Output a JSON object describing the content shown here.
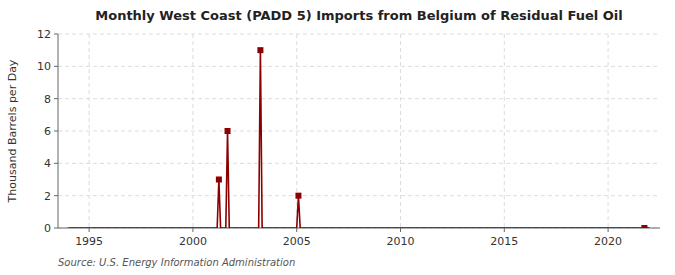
{
  "chart_data": {
    "type": "line",
    "title": "Monthly West Coast (PADD 5) Imports from Belgium of Residual Fuel Oil",
    "ylabel": "Thousand Barrels per Day",
    "source": "Source: U.S. Energy Information Administration",
    "xlim": [
      1993.5,
      2022.5
    ],
    "ylim": [
      0,
      12
    ],
    "xticks": [
      1995,
      2000,
      2005,
      2010,
      2015,
      2020
    ],
    "yticks": [
      0,
      2,
      4,
      6,
      8,
      10,
      12
    ],
    "grid": true,
    "series": [
      {
        "type": "line",
        "color": "#8b0000",
        "x": [
          1994.0,
          1994.083,
          1994.167,
          1994.25,
          1994.333,
          1994.417,
          1994.5,
          1994.583,
          1994.667,
          1994.75,
          1994.833,
          1994.917,
          1995.0,
          1995.083,
          1995.167,
          1995.25,
          1995.333,
          1995.417,
          1995.5,
          1995.583,
          1995.667,
          1995.75,
          1995.833,
          1995.917,
          1996.0,
          1996.083,
          1996.167,
          1996.25,
          1996.333,
          1996.417,
          1996.5,
          1996.583,
          1996.667,
          1996.75,
          1996.833,
          1996.917,
          1997.0,
          1997.083,
          1997.167,
          1997.25,
          1997.333,
          1997.417,
          1997.5,
          1997.583,
          1997.667,
          1997.75,
          1997.833,
          1997.917,
          1998.0,
          1998.083,
          1998.167,
          1998.25,
          1998.333,
          1998.417,
          1998.5,
          1998.583,
          1998.667,
          1998.75,
          1998.833,
          1998.917,
          1999.0,
          1999.083,
          1999.167,
          1999.25,
          1999.333,
          1999.417,
          1999.5,
          1999.583,
          1999.667,
          1999.75,
          1999.833,
          1999.917,
          2000.0,
          2000.083,
          2000.167,
          2000.25,
          2000.333,
          2000.417,
          2000.5,
          2000.583,
          2000.667,
          2000.75,
          2000.833,
          2000.917,
          2001.0,
          2001.083,
          2001.167,
          2001.25,
          2001.333,
          2001.417,
          2001.5,
          2001.583,
          2001.667,
          2001.75,
          2001.833,
          2001.917,
          2002.0,
          2002.083,
          2002.167,
          2002.25,
          2002.333,
          2002.417,
          2002.5,
          2002.583,
          2002.667,
          2002.75,
          2002.833,
          2002.917,
          2003.0,
          2003.083,
          2003.167,
          2003.25,
          2003.333,
          2003.417,
          2003.5,
          2003.583,
          2003.667,
          2003.75,
          2003.833,
          2003.917,
          2004.0,
          2004.083,
          2004.167,
          2004.25,
          2004.333,
          2004.417,
          2004.5,
          2004.583,
          2004.667,
          2004.75,
          2004.833,
          2004.917,
          2005.0,
          2005.083,
          2005.167,
          2005.25,
          2005.333,
          2005.417,
          2005.5,
          2005.583,
          2005.667,
          2005.75,
          2005.833,
          2005.917,
          2006.0,
          2006.083,
          2006.167,
          2006.25,
          2006.333,
          2006.417,
          2006.5,
          2006.583,
          2006.667,
          2006.75,
          2006.833,
          2006.917,
          2007.0,
          2008.0,
          2009.0,
          2010.0,
          2011.0,
          2012.0,
          2013.0,
          2014.0,
          2015.0,
          2016.0,
          2017.0,
          2018.0,
          2019.0,
          2020.0,
          2021.0,
          2021.083,
          2021.167,
          2021.25,
          2021.333,
          2021.417,
          2021.5,
          2021.583,
          2021.667,
          2021.75,
          2021.833,
          2021.917,
          2022.0
        ],
        "values": [
          0,
          0,
          0,
          0,
          0,
          0,
          0,
          0,
          0,
          0,
          0,
          0,
          0,
          0,
          0,
          0,
          0,
          0,
          0,
          0,
          0,
          0,
          0,
          0,
          0,
          0,
          0,
          0,
          0,
          0,
          0,
          0,
          0,
          0,
          0,
          0,
          0,
          0,
          0,
          0,
          0,
          0,
          0,
          0,
          0,
          0,
          0,
          0,
          0,
          0,
          0,
          0,
          0,
          0,
          0,
          0,
          0,
          0,
          0,
          0,
          0,
          0,
          0,
          0,
          0,
          0,
          0,
          0,
          0,
          0,
          0,
          0,
          0,
          0,
          0,
          0,
          0,
          0,
          0,
          0,
          0,
          0,
          0,
          0,
          0,
          0,
          0,
          3,
          0,
          0,
          0,
          0,
          6,
          0,
          0,
          0,
          0,
          0,
          0,
          0,
          0,
          0,
          0,
          0,
          0,
          0,
          0,
          0,
          0,
          0,
          0,
          11,
          0,
          0,
          0,
          0,
          0,
          0,
          0,
          0,
          0,
          0,
          0,
          0,
          0,
          0,
          0,
          0,
          0,
          0,
          0,
          0,
          0,
          2,
          0,
          0,
          0,
          0,
          0,
          0,
          0,
          0,
          0,
          0,
          0,
          0,
          0,
          0,
          0,
          0,
          0,
          0,
          0,
          0,
          0,
          0,
          0,
          0,
          0,
          0,
          0,
          0,
          0,
          0,
          0,
          0,
          0,
          0,
          0,
          0,
          0,
          0,
          0,
          0,
          0,
          0,
          0,
          0,
          0,
          0,
          0,
          0,
          0
        ]
      },
      {
        "type": "scatter",
        "marker": "square",
        "color": "#8b0000",
        "x": [
          2001.25,
          2001.667,
          2003.25,
          2005.083,
          2021.75
        ],
        "values": [
          3,
          6,
          11,
          2,
          0
        ]
      }
    ]
  }
}
